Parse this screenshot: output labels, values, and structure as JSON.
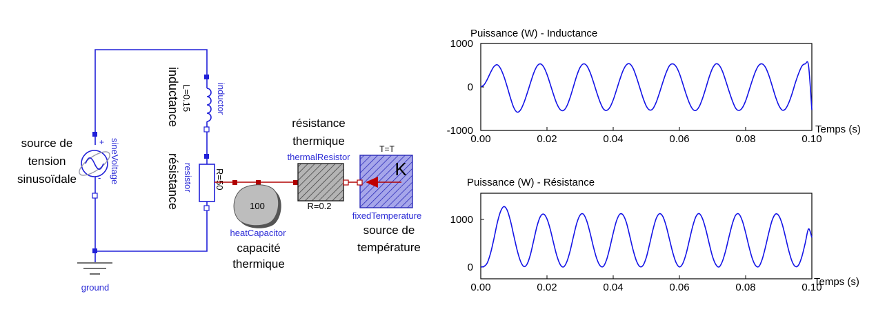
{
  "circuit": {
    "sine_name": "sineVoltage",
    "sine_plus": "+",
    "sine_minus": "-",
    "sine_desc": [
      "source de",
      "tension",
      "sinusoïdale"
    ],
    "inductor_name": "inductor",
    "inductor_param": "L=0.15",
    "inductor_desc": "inductance",
    "resistor_name": "resistor",
    "resistor_param": "R=50",
    "resistor_desc": "résistance",
    "ground_name": "ground",
    "heatcap_name": "heatCapacitor",
    "heatcap_value": "100",
    "heatcap_desc": [
      "capacité",
      "thermique"
    ],
    "thermres_name": "thermalResistor",
    "thermres_param": "R=0.2",
    "thermres_desc": [
      "résistance",
      "thermique"
    ],
    "fixedtemp_name": "fixedTemperature",
    "fixedtemp_param": "T=T",
    "fixedtemp_symbol": "K",
    "fixedtemp_desc": [
      "source de",
      "température"
    ]
  },
  "chart_data": [
    {
      "type": "line",
      "title": "Puissance (W) - Inductance",
      "xlabel": "Temps (s)",
      "ylabel": "",
      "xlim": [
        0,
        0.1
      ],
      "ylim": [
        -1000,
        1000
      ],
      "x_ticks": [
        "0.00",
        "0.02",
        "0.04",
        "0.06",
        "0.08",
        "0.10"
      ],
      "y_ticks": [
        "1000",
        "0",
        "-1000"
      ],
      "grid": true,
      "series": [
        {
          "x": [
            0.0,
            0.001,
            0.002,
            0.003,
            0.004,
            0.005,
            0.006,
            0.007,
            0.008,
            0.009,
            0.01,
            0.011,
            0.012,
            0.013,
            0.014,
            0.015,
            0.016,
            0.017,
            0.018,
            0.019,
            0.02,
            0.021,
            0.022,
            0.023,
            0.024,
            0.025,
            0.026,
            0.027,
            0.028,
            0.029,
            0.03,
            0.031,
            0.032,
            0.033,
            0.034,
            0.035,
            0.036,
            0.037,
            0.038,
            0.039,
            0.04,
            0.041,
            0.042,
            0.043,
            0.044,
            0.045,
            0.046,
            0.047,
            0.048,
            0.049,
            0.05,
            0.051,
            0.052,
            0.053,
            0.054,
            0.055,
            0.056,
            0.057,
            0.058,
            0.059,
            0.06,
            0.061,
            0.062,
            0.063,
            0.064,
            0.065,
            0.066,
            0.067,
            0.068,
            0.069,
            0.07,
            0.071,
            0.072,
            0.073,
            0.074,
            0.075,
            0.076,
            0.077,
            0.078,
            0.079,
            0.08,
            0.081,
            0.082,
            0.083,
            0.084,
            0.085,
            0.086,
            0.087,
            0.088,
            0.089,
            0.09,
            0.091,
            0.092,
            0.093,
            0.094,
            0.095,
            0.096,
            0.097,
            0.098,
            0.099,
            0.1
          ],
          "values": [
            0,
            50,
            180,
            340,
            470,
            510,
            420,
            240,
            0,
            -260,
            -480,
            -580,
            -530,
            -370,
            -150,
            90,
            320,
            480,
            530,
            460,
            290,
            60,
            -180,
            -390,
            -520,
            -540,
            -440,
            -240,
            10,
            260,
            450,
            530,
            490,
            340,
            120,
            -120,
            -340,
            -500,
            -540,
            -470,
            -300,
            -70,
            170,
            380,
            510,
            530,
            430,
            230,
            -10,
            -250,
            -440,
            -530,
            -500,
            -350,
            -130,
            110,
            330,
            490,
            530,
            470,
            310,
            80,
            -160,
            -370,
            -510,
            -540,
            -450,
            -260,
            -20,
            230,
            430,
            530,
            500,
            360,
            140,
            -100,
            -320,
            -490,
            -540,
            -480,
            -320,
            -90,
            150,
            360,
            500,
            530,
            450,
            270,
            30,
            -220,
            -420,
            -530,
            -510,
            -370,
            -160,
            90,
            310,
            480,
            530,
            490,
            -530
          ]
        }
      ]
    },
    {
      "type": "line",
      "title": "Puissance (W) - Résistance",
      "xlabel": "Temps (s)",
      "ylabel": "",
      "xlim": [
        0,
        0.1
      ],
      "ylim": [
        -250,
        1550
      ],
      "x_ticks": [
        "0.00",
        "0.02",
        "0.04",
        "0.06",
        "0.08",
        "0.10"
      ],
      "y_ticks": [
        "1000",
        "0"
      ],
      "grid": true,
      "series": [
        {
          "x": [
            0.0,
            0.001,
            0.002,
            0.003,
            0.004,
            0.005,
            0.006,
            0.007,
            0.008,
            0.009,
            0.01,
            0.011,
            0.012,
            0.013,
            0.014,
            0.015,
            0.016,
            0.017,
            0.018,
            0.019,
            0.02,
            0.021,
            0.022,
            0.023,
            0.024,
            0.025,
            0.026,
            0.027,
            0.028,
            0.029,
            0.03,
            0.031,
            0.032,
            0.033,
            0.034,
            0.035,
            0.036,
            0.037,
            0.038,
            0.039,
            0.04,
            0.041,
            0.042,
            0.043,
            0.044,
            0.045,
            0.046,
            0.047,
            0.048,
            0.049,
            0.05,
            0.051,
            0.052,
            0.053,
            0.054,
            0.055,
            0.056,
            0.057,
            0.058,
            0.059,
            0.06,
            0.061,
            0.062,
            0.063,
            0.064,
            0.065,
            0.066,
            0.067,
            0.068,
            0.069,
            0.07,
            0.071,
            0.072,
            0.073,
            0.074,
            0.075,
            0.076,
            0.077,
            0.078,
            0.079,
            0.08,
            0.081,
            0.082,
            0.083,
            0.084,
            0.085,
            0.086,
            0.087,
            0.088,
            0.089,
            0.09,
            0.091,
            0.092,
            0.093,
            0.094,
            0.095,
            0.096,
            0.097,
            0.098,
            0.099,
            0.1
          ],
          "values": [
            0,
            10,
            90,
            300,
            600,
            930,
            1170,
            1270,
            1190,
            960,
            650,
            350,
            120,
            10,
            60,
            260,
            560,
            860,
            1060,
            1110,
            1010,
            790,
            500,
            230,
            50,
            0,
            110,
            340,
            640,
            920,
            1090,
            1110,
            970,
            720,
            430,
            180,
            30,
            10,
            150,
            410,
            710,
            970,
            1110,
            1090,
            930,
            650,
            360,
            130,
            10,
            30,
            200,
            480,
            780,
            1020,
            1120,
            1060,
            860,
            580,
            300,
            90,
            0,
            70,
            270,
            560,
            850,
            1060,
            1120,
            1010,
            780,
            490,
            220,
            50,
            0,
            120,
            350,
            640,
            910,
            1090,
            1110,
            970,
            720,
            430,
            180,
            30,
            10,
            160,
            420,
            720,
            980,
            1110,
            1080,
            910,
            640,
            350,
            120,
            10,
            40,
            220,
            500,
            800,
            620
          ]
        }
      ]
    }
  ]
}
